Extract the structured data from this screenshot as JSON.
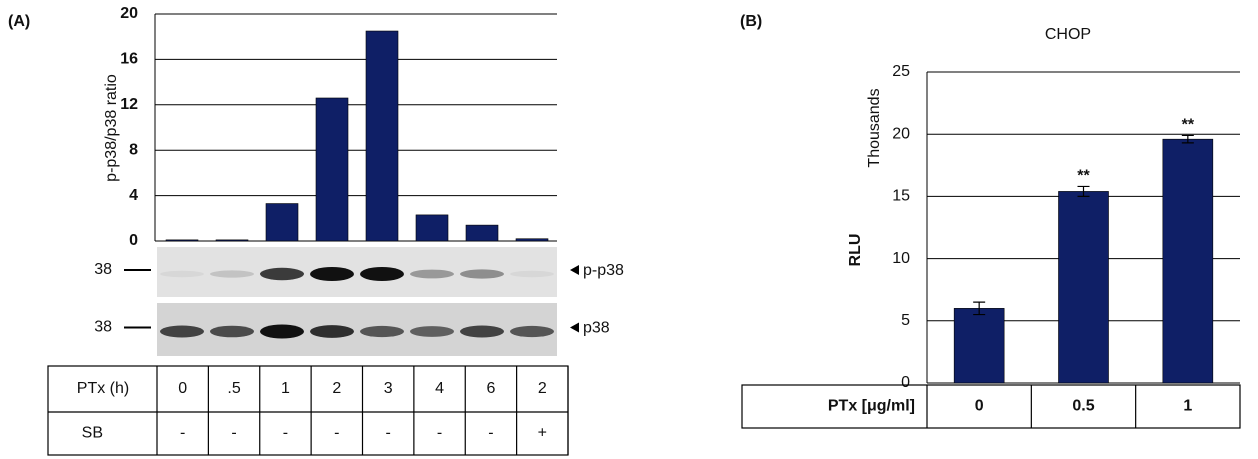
{
  "chart_data": [
    {
      "type": "bar",
      "panel": "(A)",
      "ylabel": "p-p38/p38 ratio",
      "categories": [
        "0",
        ".5",
        "1",
        "2",
        "3",
        "4",
        "6",
        "2"
      ],
      "category_label": "PTx (h)",
      "sb_label": "SB",
      "sb": [
        "-",
        "-",
        "-",
        "-",
        "-",
        "-",
        "-",
        "+"
      ],
      "values": [
        0.1,
        0.1,
        3.3,
        12.6,
        18.5,
        2.3,
        1.4,
        0.2
      ],
      "color": "#0f1f66",
      "ylim": [
        0,
        20
      ],
      "yticks": [
        0,
        4,
        8,
        12,
        16,
        20
      ],
      "grid": true,
      "blots": [
        {
          "marker": "38",
          "label": "p-p38"
        },
        {
          "marker": "38",
          "label": "p38"
        }
      ]
    },
    {
      "type": "bar",
      "panel": "(B)",
      "title": "CHOP",
      "ylabel": "RLU",
      "yunit": "Thousands",
      "categories": [
        "0",
        "0.5",
        "1"
      ],
      "category_label": "PTx [μg/ml]",
      "values": [
        6.0,
        15.4,
        19.6
      ],
      "errors": [
        0.5,
        0.4,
        0.3
      ],
      "significance": [
        null,
        "**",
        "**"
      ],
      "color": "#0f1f66",
      "ylim": [
        0,
        25
      ],
      "yticks": [
        0,
        5,
        10,
        15,
        20,
        25
      ],
      "grid": true
    }
  ]
}
